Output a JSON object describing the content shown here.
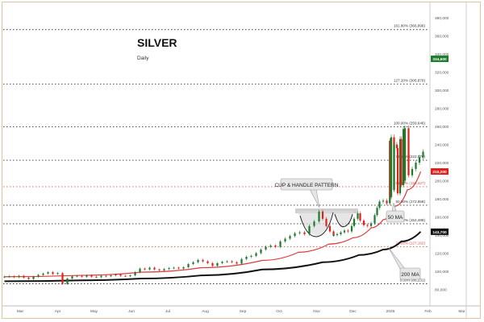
{
  "chart_data": {
    "type": "candlestick",
    "title": "SILVER",
    "subtitle": "Daily",
    "ylim": [
      70000,
      390000
    ],
    "y_ticks": [
      80000,
      100000,
      120000,
      140000,
      160000,
      180000,
      200000,
      220000,
      240000,
      260000,
      280000,
      300000,
      320000,
      340000,
      360000,
      380000
    ],
    "y_tick_labels": [
      "80,000",
      "100,000",
      "120,000",
      "140,000",
      "160,000",
      "180,000",
      "200,000",
      "220,000",
      "240,000",
      "260,000",
      "280,000",
      "300,000",
      "320,000",
      "340,000",
      "360,000",
      "380,000"
    ],
    "x_unit": "days since 1 Mar 2025",
    "x_ticks": [
      0,
      31,
      61,
      92,
      122,
      153,
      184,
      214,
      245,
      275,
      306,
      337,
      365
    ],
    "x_tick_labels": [
      "Mar",
      "Apr",
      "May",
      "Jun",
      "Jul",
      "Aug",
      "Sep",
      "Oct",
      "Nov",
      "Dec",
      "2026",
      "Feb",
      "Mar"
    ],
    "closes": [
      [
        -13,
        94000
      ],
      [
        -9,
        94600
      ],
      [
        -5,
        93500
      ],
      [
        -1,
        95000
      ],
      [
        3,
        93000
      ],
      [
        7,
        91500
      ],
      [
        11,
        94000
      ],
      [
        15,
        96000
      ],
      [
        19,
        97500
      ],
      [
        23,
        99000
      ],
      [
        27,
        97000
      ],
      [
        31,
        98000
      ],
      [
        35,
        86000
      ],
      [
        39,
        92000
      ],
      [
        43,
        94500
      ],
      [
        47,
        95000
      ],
      [
        51,
        94000
      ],
      [
        55,
        95500
      ],
      [
        59,
        94000
      ],
      [
        63,
        93500
      ],
      [
        67,
        95000
      ],
      [
        71,
        94500
      ],
      [
        75,
        95500
      ],
      [
        79,
        96500
      ],
      [
        83,
        95000
      ],
      [
        87,
        94500
      ],
      [
        91,
        95500
      ],
      [
        95,
        99000
      ],
      [
        99,
        103000
      ],
      [
        103,
        102000
      ],
      [
        107,
        104000
      ],
      [
        111,
        102000
      ],
      [
        115,
        101000
      ],
      [
        119,
        102500
      ],
      [
        123,
        103500
      ],
      [
        127,
        104000
      ],
      [
        131,
        103000
      ],
      [
        135,
        104500
      ],
      [
        139,
        108000
      ],
      [
        143,
        110000
      ],
      [
        147,
        112500
      ],
      [
        151,
        111000
      ],
      [
        155,
        109000
      ],
      [
        159,
        106000
      ],
      [
        163,
        109000
      ],
      [
        167,
        110500
      ],
      [
        171,
        111000
      ],
      [
        175,
        110000
      ],
      [
        179,
        108500
      ],
      [
        183,
        113500
      ],
      [
        187,
        116000
      ],
      [
        191,
        117000
      ],
      [
        195,
        120000
      ],
      [
        199,
        124000
      ],
      [
        203,
        127000
      ],
      [
        207,
        128500
      ],
      [
        211,
        127000
      ],
      [
        215,
        133000
      ],
      [
        219,
        136000
      ],
      [
        223,
        139000
      ],
      [
        227,
        142000
      ],
      [
        231,
        143000
      ],
      [
        235,
        141000
      ],
      [
        239,
        150000
      ],
      [
        243,
        155000
      ],
      [
        247,
        166000
      ],
      [
        250,
        158000
      ],
      [
        253,
        150000
      ],
      [
        256,
        144000
      ],
      [
        259,
        140000
      ],
      [
        262,
        141000
      ],
      [
        265,
        143000
      ],
      [
        268,
        145000
      ],
      [
        271,
        144000
      ],
      [
        274,
        150000
      ],
      [
        276,
        158000
      ],
      [
        259.1,
        140000
      ],
      [
        279,
        164000
      ],
      [
        281,
        156000
      ],
      [
        284,
        151000
      ],
      [
        287,
        150000
      ],
      [
        290,
        153000
      ],
      [
        293,
        162000
      ],
      [
        295,
        170000
      ],
      [
        297,
        177000
      ],
      [
        300,
        178000
      ],
      [
        303,
        175000
      ],
      [
        306,
        182000
      ],
      [
        309,
        190000
      ],
      [
        312,
        186000
      ],
      [
        315,
        195000
      ],
      [
        318,
        200000
      ],
      [
        321,
        206000
      ],
      [
        324,
        213000
      ],
      [
        327,
        220000
      ],
      [
        330,
        226000
      ],
      [
        333,
        232000
      ],
      [
        305.5,
        244000
      ],
      [
        306.7,
        248000
      ],
      [
        309,
        240000
      ],
      [
        311.3,
        236000
      ],
      [
        314,
        246000
      ],
      [
        316.7,
        257000
      ],
      [
        318,
        258000
      ]
    ],
    "candle_data_note": "",
    "series": [
      {
        "name": "50 MA",
        "color": "#e03a3a",
        "points": [
          [
            -13,
            94000
          ],
          [
            50,
            95500
          ],
          [
            100,
            99000
          ],
          [
            150,
            104000
          ],
          [
            200,
            112000
          ],
          [
            230,
            121000
          ],
          [
            255,
            130000
          ],
          [
            275,
            137000
          ],
          [
            290,
            148000
          ],
          [
            300,
            157000
          ],
          [
            310,
            172000
          ],
          [
            320,
            190000
          ],
          [
            331,
            210200
          ]
        ]
      },
      {
        "name": "200 MA",
        "color": "#111111",
        "points": [
          [
            -13,
            89000
          ],
          [
            50,
            90000
          ],
          [
            100,
            92000
          ],
          [
            150,
            95500
          ],
          [
            200,
            102000
          ],
          [
            250,
            110000
          ],
          [
            280,
            118000
          ],
          [
            300,
            124000
          ],
          [
            315,
            133000
          ],
          [
            331,
            143700
          ]
        ]
      }
    ],
    "last_price": {
      "label": "334,600",
      "value": 334600,
      "color": "#1b7a2b"
    },
    "ma_price_labels": [
      {
        "label": "210,200",
        "value": 210200,
        "color": "#e0201c"
      },
      {
        "label": "143,700",
        "value": 143700,
        "color": "#111111"
      }
    ],
    "fib_levels": [
      {
        "label": "161.80% (366,896)",
        "value": 366896,
        "color": "#333333"
      },
      {
        "label": "127.20% (306,876)",
        "value": 306876,
        "color": "#333333"
      },
      {
        "label": "100.00% (259,646)",
        "value": 259646,
        "color": "#333333"
      },
      {
        "label": "78.60% (222,570)",
        "value": 222570,
        "color": "#333333"
      },
      {
        "label": "61.80% (193,427)",
        "value": 193427,
        "color": "#d9534f"
      },
      {
        "label": "50.00% (172,958)",
        "value": 172958,
        "color": "#333333"
      },
      {
        "label": "38.20% (152,488)",
        "value": 152488,
        "color": "#333333"
      },
      {
        "label": "23.60% (127,162)",
        "value": 127162,
        "color": "#d9534f"
      },
      {
        "label": "0.00% (86,231)",
        "value": 86231,
        "color": "#333333"
      }
    ],
    "annotations": {
      "pattern": "CUP & HANDLE PATTERN",
      "ma50": "50 MA",
      "ma200": "200 MA"
    },
    "colors": {
      "up": "#1b7a2b",
      "down": "#e0201c"
    }
  }
}
